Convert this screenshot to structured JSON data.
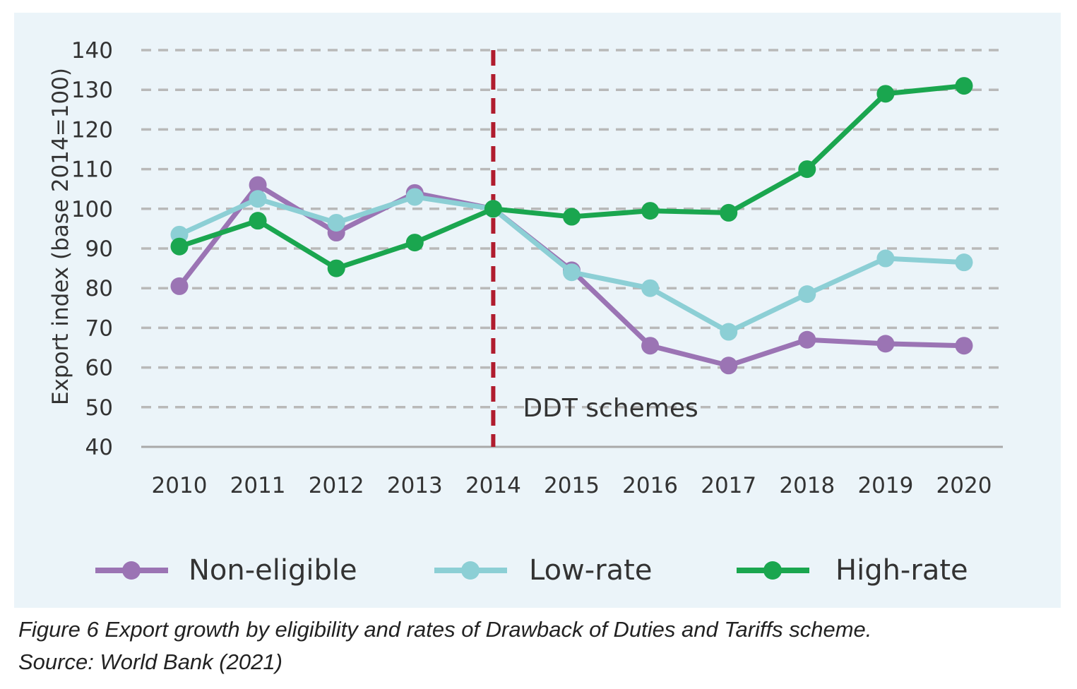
{
  "chart_data": {
    "type": "line",
    "title": "",
    "xlabel": "",
    "ylabel": "Export index (base 2014=100)",
    "x": [
      "2010",
      "2011",
      "2012",
      "2013",
      "2014",
      "2015",
      "2016",
      "2017",
      "2018",
      "2019",
      "2020"
    ],
    "yticks": [
      "40",
      "50",
      "60",
      "70",
      "80",
      "90",
      "100",
      "110",
      "120",
      "130",
      "140"
    ],
    "ylim": [
      40,
      140
    ],
    "grid": true,
    "legend_position": "bottom",
    "series": [
      {
        "name": "Non-eligible",
        "color": "#9b74b4",
        "values": [
          80.5,
          106,
          94,
          104,
          100,
          84.5,
          65.5,
          60.5,
          67,
          66,
          65.5
        ]
      },
      {
        "name": "Low-rate",
        "color": "#8ccfd5",
        "values": [
          93.5,
          102.5,
          96.5,
          103,
          100,
          84,
          80,
          69,
          78.5,
          87.5,
          86.5
        ]
      },
      {
        "name": "High-rate",
        "color": "#1aa64f",
        "values": [
          90.5,
          97,
          85,
          91.5,
          100,
          98,
          99.5,
          99,
          110,
          129,
          131
        ]
      }
    ],
    "annotations": [
      {
        "type": "vline",
        "x": "2014",
        "color": "#b01c2e",
        "style": "dashed"
      },
      {
        "type": "text",
        "text": "DDT schemes",
        "x": "2014",
        "y": 50
      }
    ]
  },
  "caption": {
    "line1": "Figure 6 Export growth by eligibility and rates of Drawback of Duties and Tariffs scheme.",
    "line2": "Source: World Bank (2021)"
  }
}
